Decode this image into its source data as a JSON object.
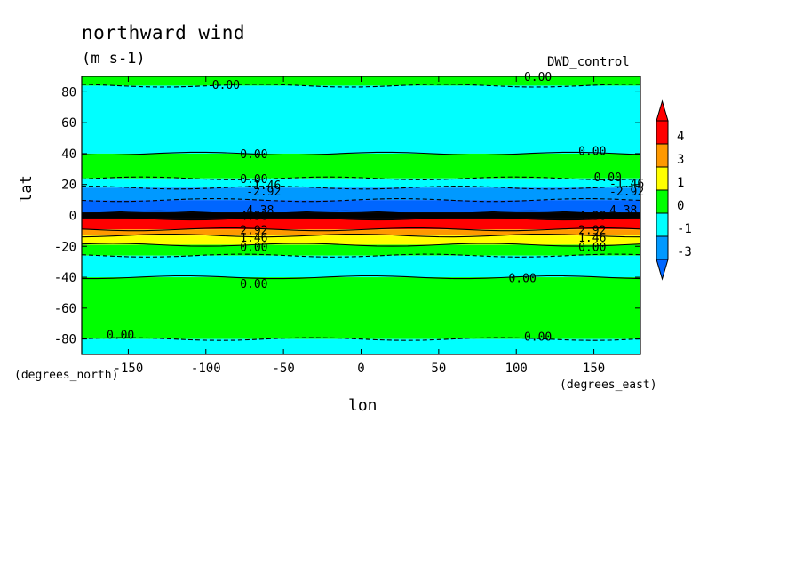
{
  "chart_data": {
    "type": "heatmap",
    "title": "northward wind",
    "units": "(m s-1)",
    "run_label": "DWD_control",
    "xlabel": "lon",
    "ylabel": "lat",
    "x_units_label": "(degrees_east)",
    "y_units_label": "(degrees_north)",
    "xlim": [
      -180,
      180
    ],
    "ylim": [
      -90,
      90
    ],
    "x_ticks": [
      "-150",
      "-100",
      "-50",
      "0",
      "50",
      "100",
      "150"
    ],
    "x_tick_values": [
      -150,
      -100,
      -50,
      0,
      50,
      100,
      150
    ],
    "y_ticks": [
      "80",
      "60",
      "40",
      "20",
      "0",
      "-20",
      "-40",
      "-60",
      "-80"
    ],
    "y_tick_values": [
      80,
      60,
      40,
      20,
      0,
      -20,
      -40,
      -60,
      -80
    ],
    "colorbar": {
      "labels": [
        "4",
        "3",
        "1",
        "0",
        "-1",
        "-3"
      ],
      "level_values": [
        4,
        3,
        1,
        0,
        -1,
        -3
      ],
      "colors": [
        "#ff0000",
        "#ff9900",
        "#ffff00",
        "#00ff00",
        "#00ffff",
        "#0099ff"
      ],
      "over_color": "#ff0000",
      "under_color": "#0066ff"
    },
    "zonal_bands": [
      {
        "lat_from": 90,
        "lat_to": 84,
        "value_class": "0 to 1",
        "color": "#00ff00"
      },
      {
        "lat_from": 84,
        "lat_to": 40,
        "value_class": "-1 to 0",
        "color": "#00ffff"
      },
      {
        "lat_from": 40,
        "lat_to": 24,
        "value_class": "0 to 1",
        "color": "#00ff00"
      },
      {
        "lat_from": 24,
        "lat_to": 18,
        "value_class": "-1 to 0",
        "color": "#00ffff"
      },
      {
        "lat_from": 18,
        "lat_to": 10,
        "value_class": "-3 to -1",
        "color": "#0099ff"
      },
      {
        "lat_from": 10,
        "lat_to": 2,
        "value_class": "below -3",
        "color": "#0066ff"
      },
      {
        "lat_from": 2,
        "lat_to": -2,
        "value_class": "strong gradient",
        "color": "#000000"
      },
      {
        "lat_from": -2,
        "lat_to": -9,
        "value_class": "above 4",
        "color": "#ff0000"
      },
      {
        "lat_from": -9,
        "lat_to": -13,
        "value_class": "3 to 4",
        "color": "#ff9900"
      },
      {
        "lat_from": -13,
        "lat_to": -19,
        "value_class": "1 to 3",
        "color": "#ffff00"
      },
      {
        "lat_from": -19,
        "lat_to": -26,
        "value_class": "0 to 1",
        "color": "#00ff00"
      },
      {
        "lat_from": -26,
        "lat_to": -40,
        "value_class": "-1 to 0",
        "color": "#00ffff"
      },
      {
        "lat_from": -40,
        "lat_to": -80,
        "value_class": "0 to 1",
        "color": "#00ff00"
      },
      {
        "lat_from": -80,
        "lat_to": -90,
        "value_class": "-1 to 0",
        "color": "#00ffff"
      }
    ],
    "contour_labels": [
      {
        "text": "0.00",
        "lon": -96,
        "lat": 82
      },
      {
        "text": "0.00",
        "lon": 105,
        "lat": 87
      },
      {
        "text": "0.00",
        "lon": -78,
        "lat": 37
      },
      {
        "text": "0.00",
        "lon": 140,
        "lat": 39
      },
      {
        "text": "0.00",
        "lon": -78,
        "lat": 21
      },
      {
        "text": "0.00",
        "lon": 150,
        "lat": 22
      },
      {
        "text": "-1.46",
        "lon": -74,
        "lat": 17
      },
      {
        "text": "-2.92",
        "lon": -74,
        "lat": 13
      },
      {
        "text": "-1.46",
        "lon": 160,
        "lat": 18
      },
      {
        "text": "-2.92",
        "lon": 160,
        "lat": 13
      },
      {
        "text": "4.38",
        "lon": -74,
        "lat": 1
      },
      {
        "text": "4.38",
        "lon": 160,
        "lat": 1
      },
      {
        "text": "4.38",
        "lon": -78,
        "lat": -3
      },
      {
        "text": "4.38",
        "lon": 140,
        "lat": -3
      },
      {
        "text": "2.92",
        "lon": -78,
        "lat": -12
      },
      {
        "text": "2.92",
        "lon": 140,
        "lat": -12
      },
      {
        "text": "1.46",
        "lon": -78,
        "lat": -17
      },
      {
        "text": "1.46",
        "lon": 140,
        "lat": -17
      },
      {
        "text": "0.00",
        "lon": -78,
        "lat": -23
      },
      {
        "text": "0.00",
        "lon": 140,
        "lat": -23
      },
      {
        "text": "0.00",
        "lon": -78,
        "lat": -47
      },
      {
        "text": "0.00",
        "lon": 95,
        "lat": -43
      },
      {
        "text": "0.00",
        "lon": -164,
        "lat": -80
      },
      {
        "text": "0.00",
        "lon": 105,
        "lat": -81
      }
    ]
  }
}
